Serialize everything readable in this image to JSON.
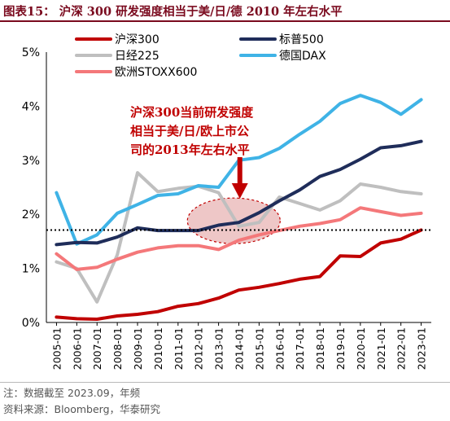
{
  "header": {
    "title": "图表15：  沪深 300 研发强度相当于美/日/德 2010 年左右水平"
  },
  "footer": {
    "note": "注：数据截至 2023.09，年频",
    "source": "资料来源：Bloomberg，华泰研究"
  },
  "colors": {
    "title": "#7a0a1e",
    "csi300": "#c00000",
    "sp500": "#1f2d5a",
    "nikkei225": "#bfbfbf",
    "dax": "#3fb3e6",
    "stoxx600": "#f4787a",
    "highlight_fill": "#e8b4b4",
    "annotation_text": "#c00000"
  },
  "chart_data": {
    "type": "line",
    "title": "沪深 300 研发强度相当于美/日/德 2010 年左右水平",
    "ylabel": "",
    "xlabel": "",
    "ylim": [
      0,
      5
    ],
    "yunit": "%",
    "yticks": [
      "0%",
      "1%",
      "2%",
      "3%",
      "4%",
      "5%"
    ],
    "categories": [
      "2005-01",
      "2006-01",
      "2007-01",
      "2008-01",
      "2009-01",
      "2010-01",
      "2011-01",
      "2012-01",
      "2013-01",
      "2014-01",
      "2015-01",
      "2016-01",
      "2017-01",
      "2018-01",
      "2019-01",
      "2020-01",
      "2021-01",
      "2022-01",
      "2023-01"
    ],
    "series": [
      {
        "name": "沪深300",
        "color": "#c00000",
        "values": [
          0.1,
          0.07,
          0.06,
          0.12,
          0.15,
          0.2,
          0.3,
          0.35,
          0.45,
          0.6,
          0.65,
          0.72,
          0.8,
          0.85,
          1.23,
          1.22,
          1.47,
          1.54,
          1.71
        ]
      },
      {
        "name": "标普500",
        "color": "#1f2d5a",
        "values": [
          1.44,
          1.48,
          1.47,
          1.58,
          1.75,
          1.7,
          1.7,
          1.7,
          1.8,
          1.85,
          2.03,
          2.25,
          2.45,
          2.7,
          2.83,
          3.02,
          3.23,
          3.27,
          3.35
        ]
      },
      {
        "name": "日经225",
        "color": "#bfbfbf",
        "values": [
          1.12,
          1.0,
          0.38,
          1.25,
          2.77,
          2.42,
          2.48,
          2.52,
          2.4,
          1.78,
          1.85,
          2.32,
          2.2,
          2.08,
          2.25,
          2.56,
          2.5,
          2.42,
          2.38
        ]
      },
      {
        "name": "德国DAX",
        "color": "#3fb3e6",
        "values": [
          2.4,
          1.45,
          1.62,
          2.02,
          2.18,
          2.35,
          2.38,
          2.53,
          2.5,
          3.0,
          3.05,
          3.22,
          3.48,
          3.72,
          4.05,
          4.2,
          4.07,
          3.85,
          4.12
        ]
      },
      {
        "name": "欧洲STOXX600",
        "color": "#f4787a",
        "values": [
          1.27,
          0.98,
          1.02,
          1.17,
          1.3,
          1.38,
          1.42,
          1.42,
          1.35,
          1.52,
          1.62,
          1.7,
          1.78,
          1.83,
          1.9,
          2.12,
          2.05,
          1.98,
          2.02
        ]
      }
    ],
    "reference_line": {
      "value": 1.71,
      "style": "dotted"
    },
    "annotation": {
      "lines": [
        "沪深300当前研发强度",
        "相当于美/日/欧上市公",
        "司的2013年左右水平"
      ]
    },
    "grid": false,
    "legend_position": "top"
  }
}
